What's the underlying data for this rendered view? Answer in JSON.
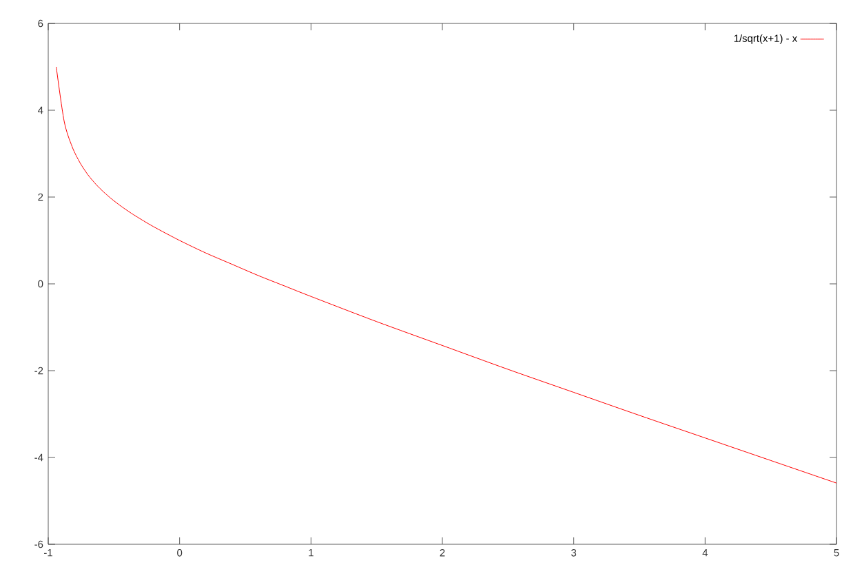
{
  "chart_data": {
    "type": "line",
    "x": [
      -0.939,
      -0.879,
      -0.818,
      -0.758,
      -0.697,
      -0.636,
      -0.576,
      -0.515,
      -0.455,
      -0.394,
      -0.333,
      -0.2,
      0,
      0.2,
      0.4,
      0.6,
      0.8,
      1,
      1.5,
      2,
      2.5,
      3,
      3.5,
      4,
      4.5,
      5
    ],
    "series": [
      {
        "name": "1/sqrt(x+1) - x",
        "color": "#ff0000",
        "values": [
          5.0,
          3.75,
          3.16,
          2.79,
          2.51,
          2.29,
          2.11,
          1.95,
          1.81,
          1.68,
          1.56,
          1.32,
          1.0,
          0.71,
          0.45,
          0.19,
          -0.05,
          -0.29,
          -0.87,
          -1.42,
          -1.97,
          -2.5,
          -3.03,
          -3.55,
          -4.07,
          -4.59
        ]
      }
    ],
    "xlim": [
      -1,
      5
    ],
    "xticks": [
      -1,
      0,
      1,
      2,
      3,
      4,
      5
    ],
    "ylim": [
      -6,
      6
    ],
    "yticks": [
      -6,
      -4,
      -2,
      0,
      2,
      4,
      6
    ],
    "legend": "top right"
  }
}
